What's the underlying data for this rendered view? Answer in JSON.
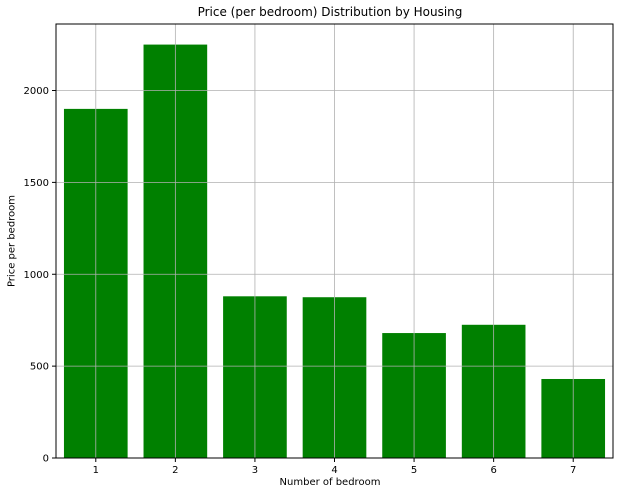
{
  "chart_data": {
    "type": "bar",
    "title": "Price (per bedroom) Distribution by Housing",
    "xlabel": "Number of bedroom",
    "ylabel": "Price per bedroom",
    "categories": [
      "1",
      "2",
      "3",
      "4",
      "5",
      "6",
      "7"
    ],
    "values": [
      1900,
      2250,
      880,
      875,
      680,
      725,
      430
    ],
    "yticks": [
      0,
      500,
      1000,
      1500,
      2000
    ],
    "ylim": [
      0,
      2362
    ],
    "grid": true,
    "color": "#008000"
  }
}
